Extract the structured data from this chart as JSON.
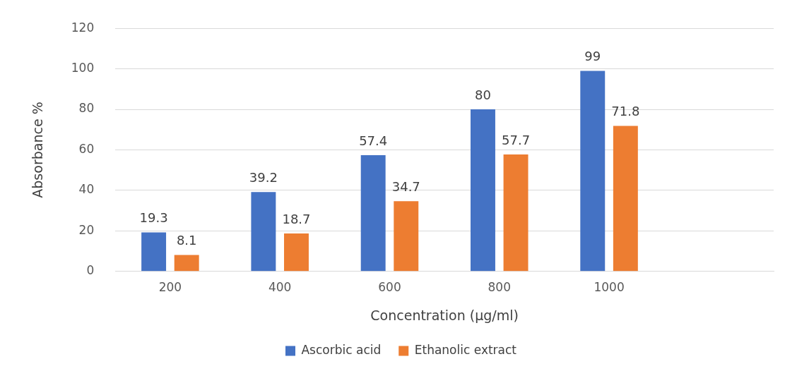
{
  "chart_data": {
    "type": "bar",
    "xlabel": "Concentration (µg/ml)",
    "ylabel": "Absorbance %",
    "categories": [
      "200",
      "400",
      "600",
      "800",
      "1000",
      null
    ],
    "series": [
      {
        "name": "Ascorbic acid",
        "color": "#4472c4",
        "values": [
          19.3,
          39.2,
          57.4,
          80,
          99,
          null
        ]
      },
      {
        "name": "Ethanolic extract",
        "color": "#ed7d31",
        "values": [
          8.1,
          18.7,
          34.7,
          57.7,
          71.8,
          null
        ]
      }
    ],
    "ylim": [
      0,
      120
    ],
    "yticks": [
      0,
      20,
      40,
      60,
      80,
      100,
      120
    ],
    "grid": "y",
    "legend": "bottom",
    "data_labels": true
  }
}
